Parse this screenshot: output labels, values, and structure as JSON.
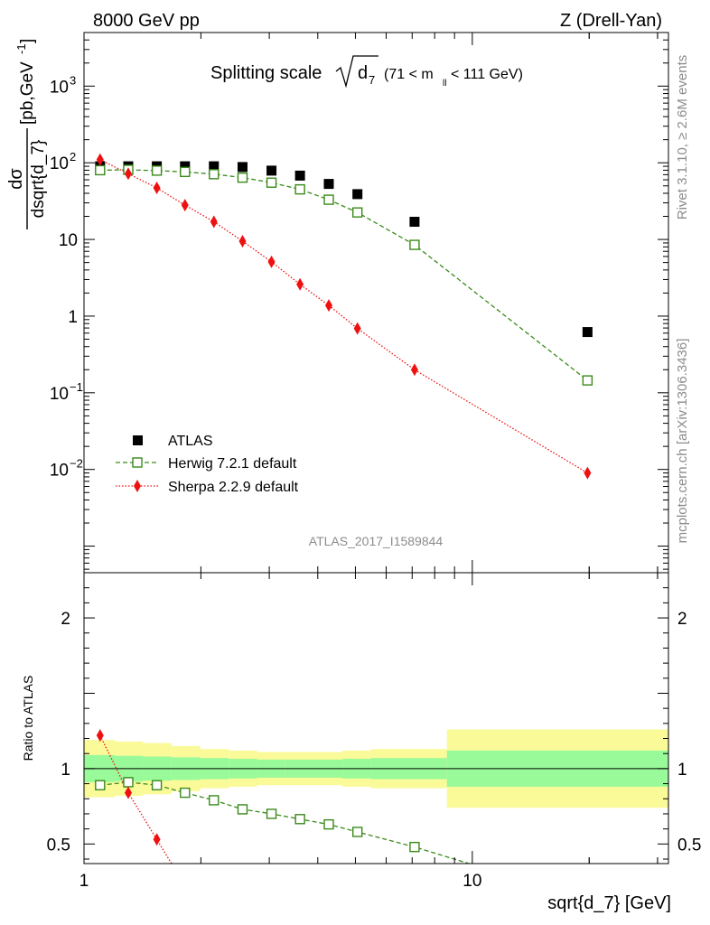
{
  "header": {
    "left": "8000 GeV pp",
    "right": "Z (Drell-Yan)"
  },
  "side": {
    "rivet": "Rivet 3.1.10, ≥ 2.6M events",
    "mcplots": "mcplots.cern.ch [arXiv:1306.3436]"
  },
  "watermark": "ATLAS_2017_I1589844",
  "colors": {
    "atlas": "#000000",
    "herwig": "#3a8a1a",
    "sherpa": "#ee1111",
    "band_inner": "#99fa99",
    "band_outer": "#fafa99"
  },
  "chart_data": [
    {
      "type": "scatter",
      "panel": "main",
      "title_main": "Splitting scale",
      "title_sqrt": "d",
      "title_sub": "7",
      "title_range_pre": "(71 < m",
      "title_range_sub": "ll",
      "title_range_post": " < 111 GeV)",
      "ylabel_num": "dσ",
      "ylabel_den": "dsqrt{d_7}",
      "ylabel_units": "[pb,GeV",
      "ylabel_units_sup": "-1",
      "ylabel_units_end": "]",
      "x_scale": "log",
      "y_scale": "log",
      "xlim": [
        1,
        32
      ],
      "ylim": [
        0.00045,
        5000
      ],
      "y_ticks": [
        {
          "value": 0.01,
          "base": "10",
          "exp": "−2"
        },
        {
          "value": 0.1,
          "base": "10",
          "exp": "−1"
        },
        {
          "value": 1,
          "base": "1",
          "exp": ""
        },
        {
          "value": 10,
          "base": "10",
          "exp": ""
        },
        {
          "value": 100,
          "base": "10",
          "exp": "2"
        },
        {
          "value": 1000,
          "base": "10",
          "exp": "3"
        }
      ],
      "legend_position": "left",
      "series": [
        {
          "name": "ATLAS",
          "style": "filled-square",
          "x": [
            1.1,
            1.3,
            1.54,
            1.82,
            2.16,
            2.56,
            3.04,
            3.6,
            4.27,
            5.06,
            7.1,
            19.8
          ],
          "y": [
            90,
            90,
            90,
            90,
            90,
            88,
            79,
            68,
            53,
            39,
            17,
            0.62
          ]
        },
        {
          "name": "Herwig 7.2.1 default",
          "style": "open-square-dashed",
          "x": [
            1.1,
            1.3,
            1.54,
            1.82,
            2.16,
            2.56,
            3.04,
            3.6,
            4.27,
            5.06,
            7.1,
            19.8
          ],
          "y": [
            80,
            81,
            79,
            76,
            71,
            64,
            55,
            45,
            33,
            22.5,
            8.5,
            0.145
          ]
        },
        {
          "name": "Sherpa 2.2.9 default",
          "style": "diamond-dotted",
          "x": [
            1.1,
            1.3,
            1.54,
            1.82,
            2.16,
            2.56,
            3.04,
            3.6,
            4.27,
            5.06,
            7.1,
            19.8
          ],
          "y": [
            110,
            72,
            47,
            28,
            17,
            9.5,
            5.1,
            2.6,
            1.38,
            0.69,
            0.2,
            0.009
          ]
        }
      ]
    },
    {
      "type": "line",
      "panel": "ratio",
      "ylabel": "Ratio to ATLAS",
      "xlabel": "sqrt{d_7} [GeV]",
      "x_scale": "log",
      "xlim": [
        1,
        32
      ],
      "ylim": [
        0.37,
        2.3
      ],
      "x_ticks": [
        {
          "value": 1,
          "label": "1"
        },
        {
          "value": 10,
          "label": "10"
        }
      ],
      "y_ticks": [
        {
          "value": 0.5,
          "label": "0.5"
        },
        {
          "value": 1,
          "label": "1"
        },
        {
          "value": 2,
          "label": "2"
        }
      ],
      "bands": {
        "edges": [
          1,
          1.2,
          1.42,
          1.68,
          1.99,
          2.36,
          2.79,
          3.3,
          3.91,
          4.63,
          5.48,
          8.6,
          32
        ],
        "inner": [
          0.09,
          0.085,
          0.08,
          0.075,
          0.07,
          0.065,
          0.06,
          0.06,
          0.06,
          0.065,
          0.07,
          0.12
        ],
        "outer": [
          0.19,
          0.18,
          0.17,
          0.15,
          0.13,
          0.12,
          0.11,
          0.11,
          0.11,
          0.12,
          0.13,
          0.26
        ]
      },
      "series": [
        {
          "name": "Herwig 7.2.1 default",
          "x": [
            1.1,
            1.3,
            1.54,
            1.82,
            2.16,
            2.56,
            3.04,
            3.6,
            4.27,
            5.06,
            7.1,
            9.8
          ],
          "y": [
            0.89,
            0.91,
            0.89,
            0.84,
            0.79,
            0.73,
            0.7,
            0.665,
            0.63,
            0.58,
            0.48,
            0.37
          ]
        },
        {
          "name": "Sherpa 2.2.9 default",
          "x": [
            1.1,
            1.3,
            1.54,
            1.68
          ],
          "y": [
            1.22,
            0.84,
            0.53,
            0.37
          ]
        }
      ]
    }
  ]
}
